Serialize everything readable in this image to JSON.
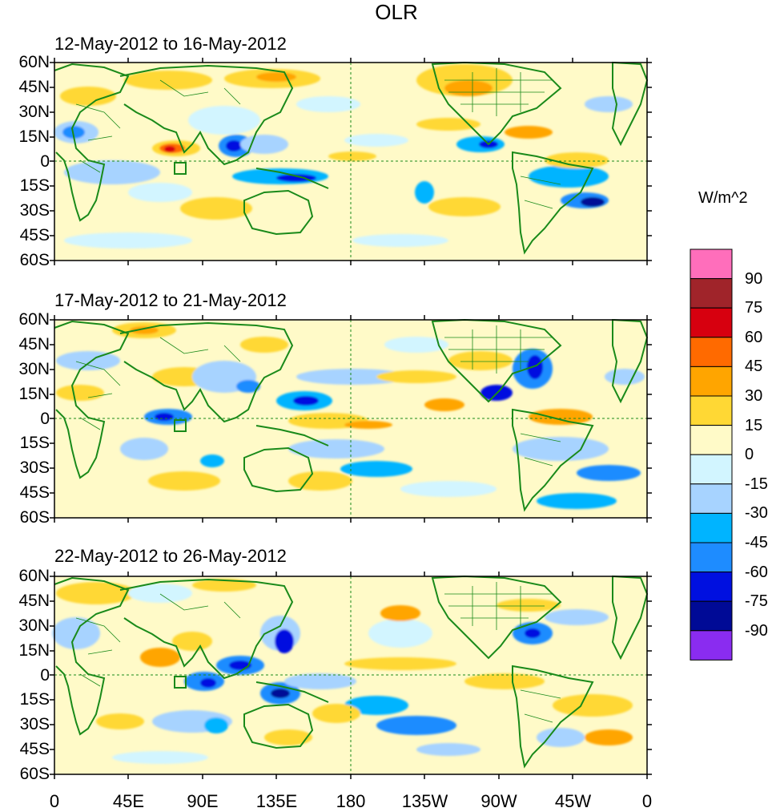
{
  "title": "OLR",
  "panels": [
    {
      "date_range": "12-May-2012 to 16-May-2012"
    },
    {
      "date_range": "17-May-2012 to 21-May-2012"
    },
    {
      "date_range": "22-May-2012 to 26-May-2012"
    }
  ],
  "lat_ticks": [
    "60N",
    "45N",
    "30N",
    "15N",
    "0",
    "15S",
    "30S",
    "45S",
    "60S"
  ],
  "lon_ticks": [
    "0",
    "45E",
    "90E",
    "135E",
    "180",
    "135W",
    "90W",
    "45W",
    "0"
  ],
  "colorbar": {
    "unit": "W/m^2",
    "labels": [
      "90",
      "75",
      "60",
      "45",
      "30",
      "15",
      "0",
      "-15",
      "-30",
      "-45",
      "-60",
      "-75",
      "-90"
    ],
    "colors": [
      "#ff6ebb",
      "#a0242a",
      "#d7000f",
      "#ff6a00",
      "#ffa500",
      "#ffd834",
      "#fffac8",
      "#d2f5ff",
      "#a7d3ff",
      "#00b4ff",
      "#1e8cff",
      "#0010e0",
      "#000a96",
      "#8a2cf0"
    ]
  }
}
